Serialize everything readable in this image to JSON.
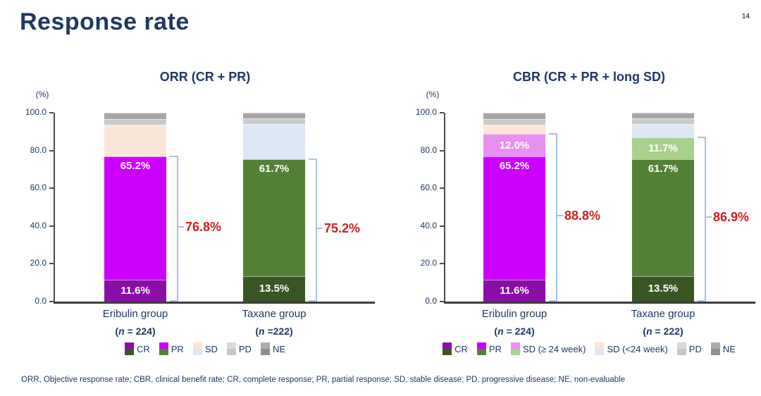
{
  "page": {
    "title": "Response rate",
    "page_number": "14",
    "footnote": "ORR, Objective response rate; CBR, clinical benefit rate; CR, complete response; PR, partial response; SD, stable disease; PD, progressive disease; NE, non-evaluable"
  },
  "colors": {
    "navy_text": "#1F3864",
    "red_total": "#D21F1F",
    "axis": "#3d3d3d",
    "bracket": "#A9C2E4",
    "cr_eribulin": "#8B0DA8",
    "pr_eribulin": "#CC00FF",
    "sd_long_eribulin": "#E890F0",
    "sd_short_eribulin": "#FBE5D6",
    "cr_taxane": "#385723",
    "pr_taxane": "#538135",
    "sd_long_taxane": "#A9D18E",
    "sd_short_taxane": "#DCE7F3",
    "pd": "#C9C9C9",
    "ne": "#A6A6A6"
  },
  "chart_data": [
    {
      "type": "bar",
      "stacked": true,
      "title": "ORR (CR + PR)",
      "ylabel": "(%)",
      "ylim": [
        0,
        100
      ],
      "yticks": [
        "100.0",
        "80.0",
        "60.0",
        "40.0",
        "20.0",
        "0.0"
      ],
      "grid": false,
      "groups": [
        {
          "label": "Eribulin group",
          "n_label": "(n = 224)",
          "total_value": 76.8,
          "total_label": "76.8%",
          "segments": [
            {
              "name": "CR",
              "value": 11.6,
              "label": "11.6%",
              "label_pos": "center",
              "color": "#8B0DA8"
            },
            {
              "name": "PR",
              "value": 65.2,
              "label": "65.2%",
              "label_pos": "top",
              "color": "#CC00FF"
            },
            {
              "name": "SD",
              "value": 17.0,
              "estimated": true,
              "color": "#FBE5D6"
            },
            {
              "name": "PD",
              "value": 3.0,
              "estimated": true,
              "color": "#C9C9C9"
            },
            {
              "name": "NE",
              "value": 3.2,
              "estimated": true,
              "color": "#A6A6A6"
            }
          ]
        },
        {
          "label": "Taxane group",
          "n_label": "(n =222)",
          "total_value": 75.2,
          "total_label": "75.2%",
          "segments": [
            {
              "name": "CR",
              "value": 13.5,
              "label": "13.5%",
              "label_pos": "center",
              "color": "#385723"
            },
            {
              "name": "PR",
              "value": 61.7,
              "label": "61.7%",
              "label_pos": "top",
              "color": "#538135"
            },
            {
              "name": "SD",
              "value": 18.7,
              "estimated": true,
              "color": "#DCE7F3"
            },
            {
              "name": "PD",
              "value": 3.0,
              "estimated": true,
              "color": "#C9C9C9"
            },
            {
              "name": "NE",
              "value": 3.1,
              "estimated": true,
              "color": "#A6A6A6"
            }
          ]
        }
      ],
      "legend": [
        {
          "label": "CR",
          "colors": [
            "#8B0DA8",
            "#385723"
          ]
        },
        {
          "label": "PR",
          "colors": [
            "#CC00FF",
            "#538135"
          ]
        },
        {
          "label": "SD",
          "colors": [
            "#FBE5D6",
            "#DCE7F3"
          ]
        },
        {
          "label": "PD",
          "colors": [
            "#D9D9D9",
            "#C6C6C6"
          ]
        },
        {
          "label": "NE",
          "colors": [
            "#ACACAC",
            "#8F8F8F"
          ]
        }
      ]
    },
    {
      "type": "bar",
      "stacked": true,
      "title": "CBR (CR + PR + long SD)",
      "ylabel": "(%)",
      "ylim": [
        0,
        100
      ],
      "yticks": [
        "100.0",
        "80.0",
        "60.0",
        "40.0",
        "20.0",
        "0.0"
      ],
      "grid": false,
      "groups": [
        {
          "label": "Eribulin group",
          "n_label": "(n = 224)",
          "total_value": 88.8,
          "total_label": "88.8%",
          "segments": [
            {
              "name": "CR",
              "value": 11.6,
              "label": "11.6%",
              "label_pos": "center",
              "color": "#8B0DA8"
            },
            {
              "name": "PR",
              "value": 65.2,
              "label": "65.2%",
              "label_pos": "top",
              "color": "#CC00FF"
            },
            {
              "name": "SD (≥ 24 week)",
              "value": 12.0,
              "label": "12.0%",
              "label_pos": "center",
              "color": "#E890F0"
            },
            {
              "name": "SD (<24 week)",
              "value": 5.0,
              "estimated": true,
              "color": "#FBE5D6"
            },
            {
              "name": "PD",
              "value": 3.0,
              "estimated": true,
              "color": "#C9C9C9"
            },
            {
              "name": "NE",
              "value": 3.2,
              "estimated": true,
              "color": "#A6A6A6"
            }
          ]
        },
        {
          "label": "Taxane group",
          "n_label": "(n = 222)",
          "total_value": 86.9,
          "total_label": "86.9%",
          "segments": [
            {
              "name": "CR",
              "value": 13.5,
              "label": "13.5%",
              "label_pos": "center",
              "color": "#385723"
            },
            {
              "name": "PR",
              "value": 61.7,
              "label": "61.7%",
              "label_pos": "top",
              "color": "#538135"
            },
            {
              "name": "SD (≥ 24 week)",
              "value": 11.7,
              "label": "11.7%",
              "label_pos": "center",
              "color": "#A9D18E"
            },
            {
              "name": "SD (<24 week)",
              "value": 7.0,
              "estimated": true,
              "color": "#DCE7F3"
            },
            {
              "name": "PD",
              "value": 3.0,
              "estimated": true,
              "color": "#C9C9C9"
            },
            {
              "name": "NE",
              "value": 3.1,
              "estimated": true,
              "color": "#A6A6A6"
            }
          ]
        }
      ],
      "legend": [
        {
          "label": "CR",
          "colors": [
            "#8B0DA8",
            "#385723"
          ]
        },
        {
          "label": "PR",
          "colors": [
            "#CC00FF",
            "#538135"
          ]
        },
        {
          "label": "SD (≥ 24 week)",
          "colors": [
            "#E890F0",
            "#A9D18E"
          ]
        },
        {
          "label": "SD (<24 week)",
          "colors": [
            "#FBE5D6",
            "#DCE7F3"
          ]
        },
        {
          "label": "PD",
          "colors": [
            "#D9D9D9",
            "#C6C6C6"
          ]
        },
        {
          "label": "NE",
          "colors": [
            "#ACACAC",
            "#8F8F8F"
          ]
        }
      ]
    }
  ]
}
